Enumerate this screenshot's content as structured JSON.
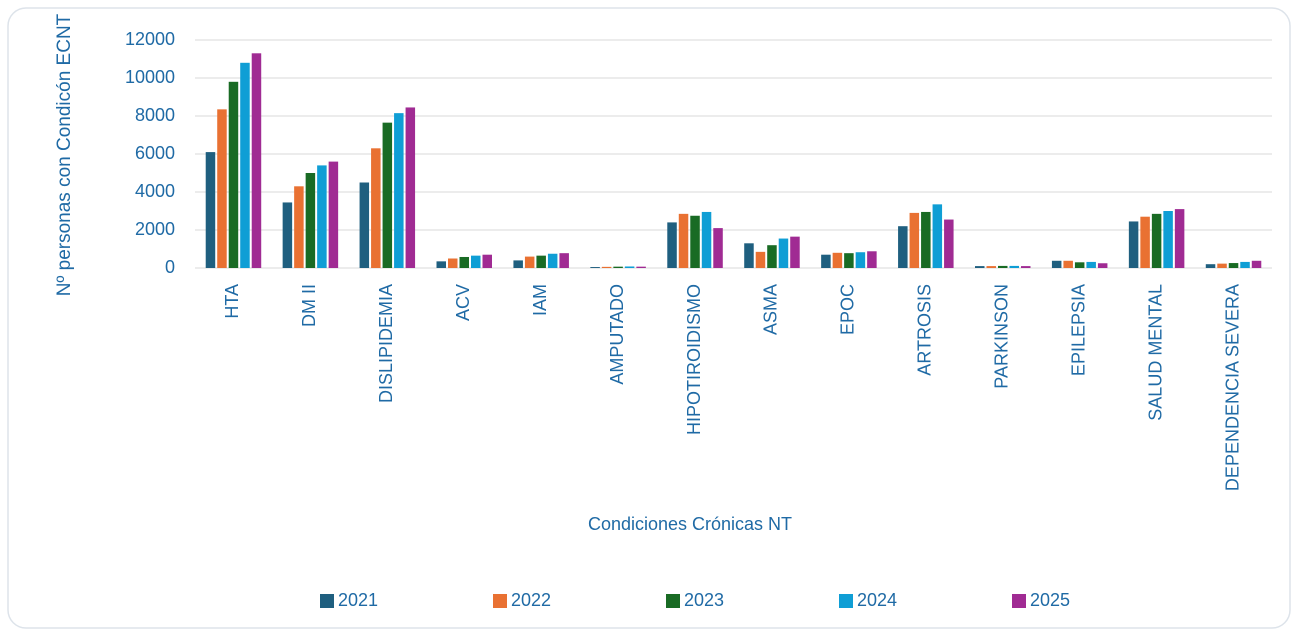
{
  "chart_data": {
    "type": "bar",
    "y_label": "Nº personas con Condicón ECNT",
    "x_label": "Condiciones Crónicas NT",
    "categories": [
      "HTA",
      "DM II",
      "DISLIPIDEMIA",
      "ACV",
      "IAM",
      "AMPUTADO",
      "HIPOTIROIDISMO",
      "ASMA",
      "EPOC",
      "ARTROSIS",
      "PARKINSON",
      "EPILEPSIA",
      "SALUD MENTAL",
      "DEPENDENCIA SEVERA"
    ],
    "series": [
      {
        "name": "2021",
        "color": "#1f5f7f",
        "values": [
          6100,
          3450,
          4500,
          350,
          400,
          50,
          2400,
          1300,
          700,
          2200,
          100,
          380,
          2450,
          200
        ]
      },
      {
        "name": "2022",
        "color": "#e97132",
        "values": [
          8350,
          4300,
          6300,
          500,
          600,
          60,
          2850,
          850,
          800,
          2900,
          100,
          380,
          2700,
          230
        ]
      },
      {
        "name": "2023",
        "color": "#196b24",
        "values": [
          9800,
          5000,
          7650,
          580,
          650,
          70,
          2750,
          1200,
          780,
          2950,
          110,
          300,
          2850,
          260
        ]
      },
      {
        "name": "2024",
        "color": "#0f9ed5",
        "values": [
          10800,
          5400,
          8150,
          650,
          750,
          80,
          2950,
          1550,
          830,
          3350,
          110,
          320,
          3000,
          320
        ]
      },
      {
        "name": "2025",
        "color": "#a02b93",
        "values": [
          11300,
          5600,
          8450,
          700,
          780,
          70,
          2100,
          1650,
          880,
          2550,
          100,
          250,
          3100,
          380
        ]
      }
    ],
    "ylim": [
      0,
      12000
    ],
    "yticks": [
      0,
      2000,
      4000,
      6000,
      8000,
      10000,
      12000
    ],
    "grid": true,
    "legend": "bottom"
  }
}
